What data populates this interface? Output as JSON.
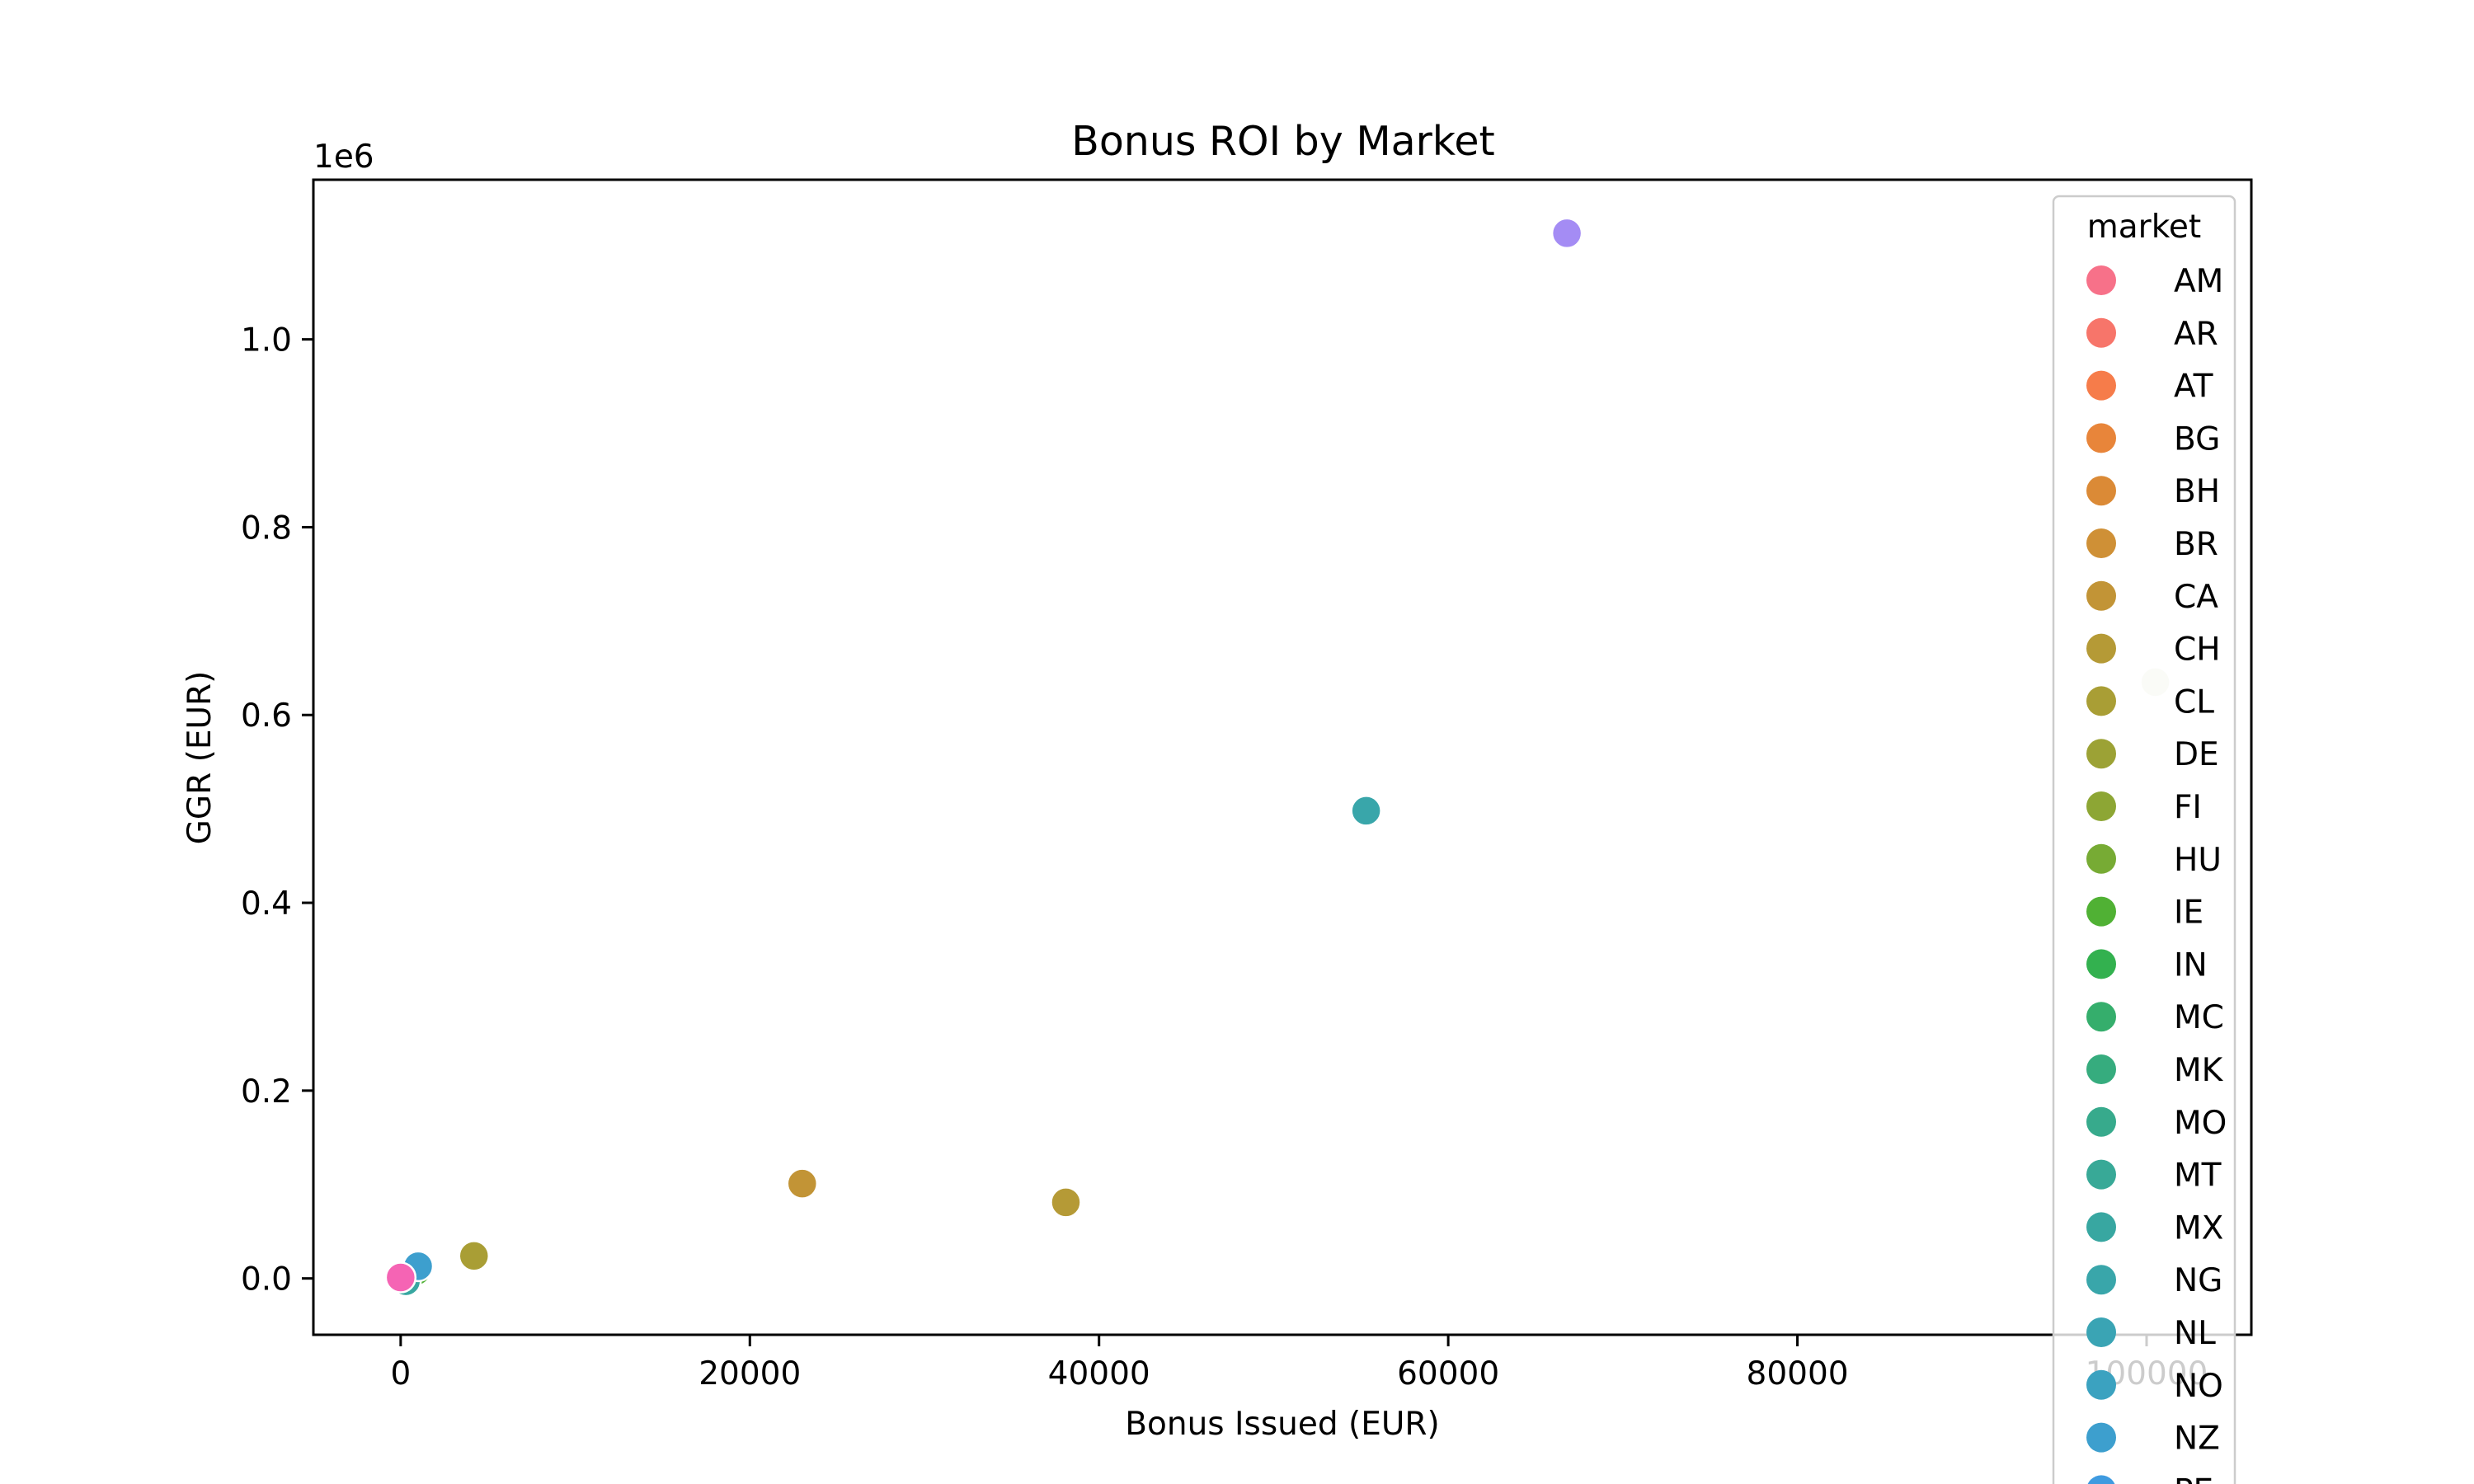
{
  "chart_data": {
    "type": "scatter",
    "title": "Bonus ROI by Market",
    "xlabel": "Bonus Issued (EUR)",
    "ylabel": "GGR (EUR)",
    "y_offset_label": "1e6",
    "xlim": [
      -5000,
      106000
    ],
    "ylim": [
      -0.06,
      1.17
    ],
    "xticks": [
      0,
      20000,
      40000,
      60000,
      80000,
      100000
    ],
    "xtick_labels": [
      "0",
      "20000",
      "40000",
      "60000",
      "80000",
      "100000"
    ],
    "yticks": [
      0.0,
      0.2,
      0.4,
      0.6,
      0.8,
      1.0
    ],
    "ytick_labels": [
      "0.0",
      "0.2",
      "0.4",
      "0.6",
      "0.8",
      "1.0"
    ],
    "grid": false,
    "legend": {
      "title": "market",
      "placement": "upper right",
      "entries": [
        {
          "label": "AM",
          "color": "#f77189"
        },
        {
          "label": "AR",
          "color": "#f7756a"
        },
        {
          "label": "AT",
          "color": "#f67c4a"
        },
        {
          "label": "BG",
          "color": "#e8853a"
        },
        {
          "label": "BH",
          "color": "#db8a36"
        },
        {
          "label": "BR",
          "color": "#cf9036"
        },
        {
          "label": "CA",
          "color": "#c29436"
        },
        {
          "label": "CH",
          "color": "#b59a36"
        },
        {
          "label": "CL",
          "color": "#a99e35"
        },
        {
          "label": "DE",
          "color": "#9ca235"
        },
        {
          "label": "FI",
          "color": "#8da634"
        },
        {
          "label": "HU",
          "color": "#77ab34"
        },
        {
          "label": "IE",
          "color": "#50b134"
        },
        {
          "label": "IN",
          "color": "#33b14f"
        },
        {
          "label": "MC",
          "color": "#35ae6c"
        },
        {
          "label": "MK",
          "color": "#36ac7e"
        },
        {
          "label": "MO",
          "color": "#37aa8c"
        },
        {
          "label": "MT",
          "color": "#38a997"
        },
        {
          "label": "MX",
          "color": "#38a7a1"
        },
        {
          "label": "NG",
          "color": "#39a6aa"
        },
        {
          "label": "NL",
          "color": "#3aa4b4"
        },
        {
          "label": "NO",
          "color": "#3ba2c0"
        },
        {
          "label": "NZ",
          "color": "#3d9fce"
        },
        {
          "label": "PE",
          "color": "#3f9be0"
        }
      ]
    },
    "points": [
      {
        "x": 66800,
        "y": 1.113,
        "color": "#a48cf4"
      },
      {
        "x": 100500,
        "y": 0.635,
        "color": "#e4ecd8"
      },
      {
        "x": 55300,
        "y": 0.498,
        "color": "#39a6aa"
      },
      {
        "x": 23000,
        "y": 0.101,
        "color": "#c29436"
      },
      {
        "x": 38100,
        "y": 0.081,
        "color": "#b59a36"
      },
      {
        "x": 4200,
        "y": 0.024,
        "color": "#a99e35"
      },
      {
        "x": 900,
        "y": 0.008,
        "color": "#50b134"
      },
      {
        "x": 300,
        "y": -0.003,
        "color": "#38a7a1"
      },
      {
        "x": 1000,
        "y": 0.013,
        "color": "#3d9fce"
      },
      {
        "x": 0,
        "y": 0.001,
        "color": "#f564b4"
      }
    ]
  }
}
